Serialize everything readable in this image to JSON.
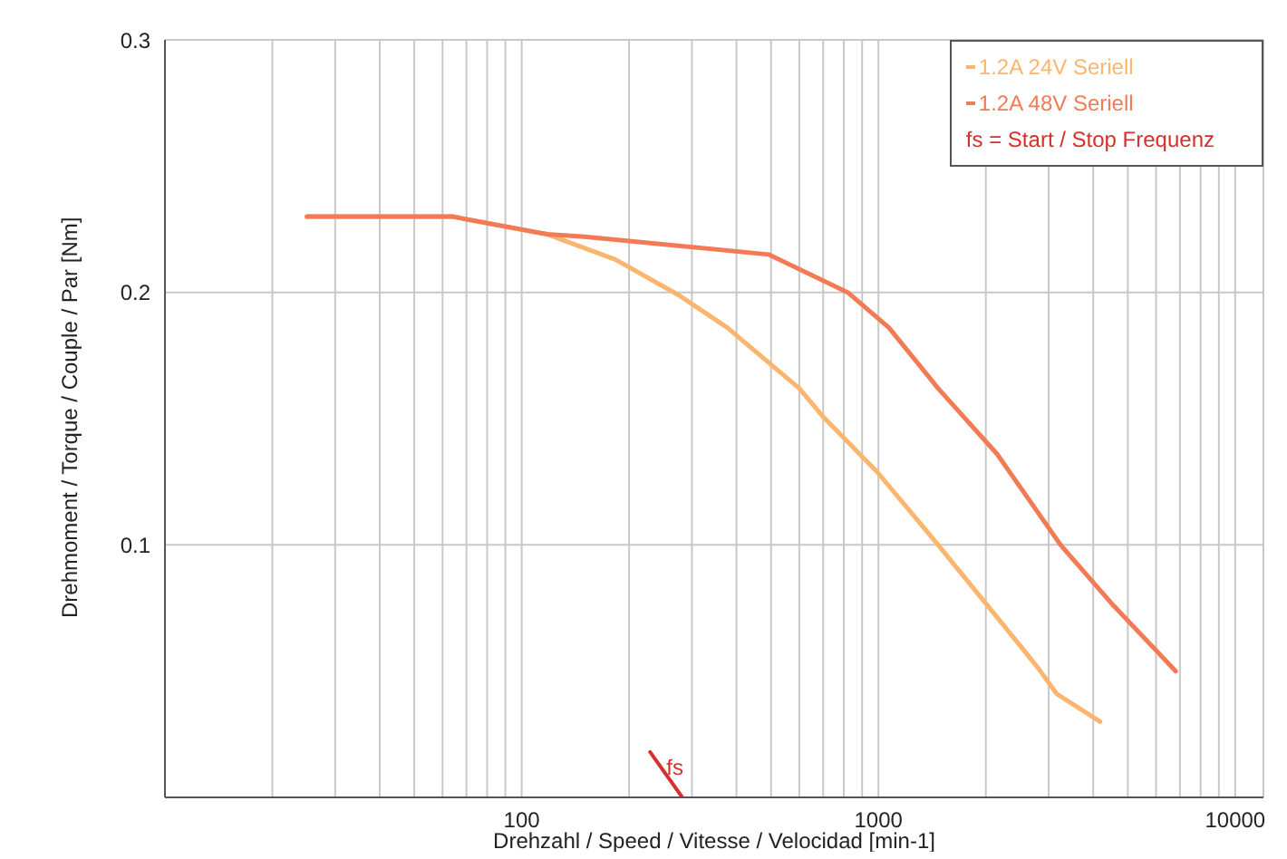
{
  "chart_data": {
    "type": "line",
    "xlabel": "Drehzahl / Speed / Vitesse / Velocidad [min-1]",
    "ylabel": "Drehmoment / Torque / Couple / Par [Nm]",
    "log": "x",
    "xlim": [
      10,
      12000
    ],
    "xticks": [
      {
        "value": 20,
        "label": null
      },
      {
        "value": 30,
        "label": null
      },
      {
        "value": 40,
        "label": null
      },
      {
        "value": 50,
        "label": null
      },
      {
        "value": 60,
        "label": null
      },
      {
        "value": 70,
        "label": null
      },
      {
        "value": 80,
        "label": null
      },
      {
        "value": 90,
        "label": null
      },
      100,
      {
        "value": 200,
        "label": null
      },
      {
        "value": 300,
        "label": null
      },
      {
        "value": 400,
        "label": null
      },
      {
        "value": 500,
        "label": null
      },
      {
        "value": 600,
        "label": null
      },
      {
        "value": 700,
        "label": null
      },
      {
        "value": 800,
        "label": null
      },
      {
        "value": 900,
        "label": null
      },
      1000,
      {
        "value": 2000,
        "label": null
      },
      {
        "value": 3000,
        "label": null
      },
      {
        "value": 4000,
        "label": null
      },
      {
        "value": 5000,
        "label": null
      },
      {
        "value": 6000,
        "label": null
      },
      {
        "value": 7000,
        "label": null
      },
      {
        "value": 8000,
        "label": null
      },
      {
        "value": 9000,
        "label": null
      },
      10000
    ],
    "ylim": [
      0,
      0.3
    ],
    "yticks": [
      0.1,
      0.2,
      0.3
    ],
    "grid": true,
    "legend": "top right",
    "marker": "none",
    "line_style": "solid",
    "series": [
      {
        "name": "1.2A 24V Seriell",
        "color": "#fbb56e",
        "x": [
          25,
          64,
          118,
          183,
          275,
          377,
          600,
          697,
          990,
          1470,
          2500,
          2810,
          3160,
          4180
        ],
        "values": [
          0.23,
          0.23,
          0.223,
          0.213,
          0.199,
          0.186,
          0.162,
          0.151,
          0.129,
          0.1,
          0.06,
          0.051,
          0.041,
          0.03
        ]
      },
      {
        "name": "1.2A 48V Seriell",
        "color": "#f27b55",
        "x": [
          25,
          64,
          118,
          150,
          492,
          820,
          1070,
          1470,
          2150,
          3240,
          4490,
          5660,
          6810
        ],
        "values": [
          0.23,
          0.23,
          0.223,
          0.222,
          0.215,
          0.2,
          0.186,
          0.162,
          0.136,
          0.1,
          0.077,
          0.062,
          0.05
        ]
      },
      {
        "name": "fs = Start / Stop Frequenz",
        "color": "#d4302c",
        "x": [
          229,
          282
        ],
        "values": [
          0.018,
          0
        ]
      }
    ],
    "annotations": [
      {
        "text": "fs",
        "x": 240,
        "y": 0.012
      }
    ]
  }
}
